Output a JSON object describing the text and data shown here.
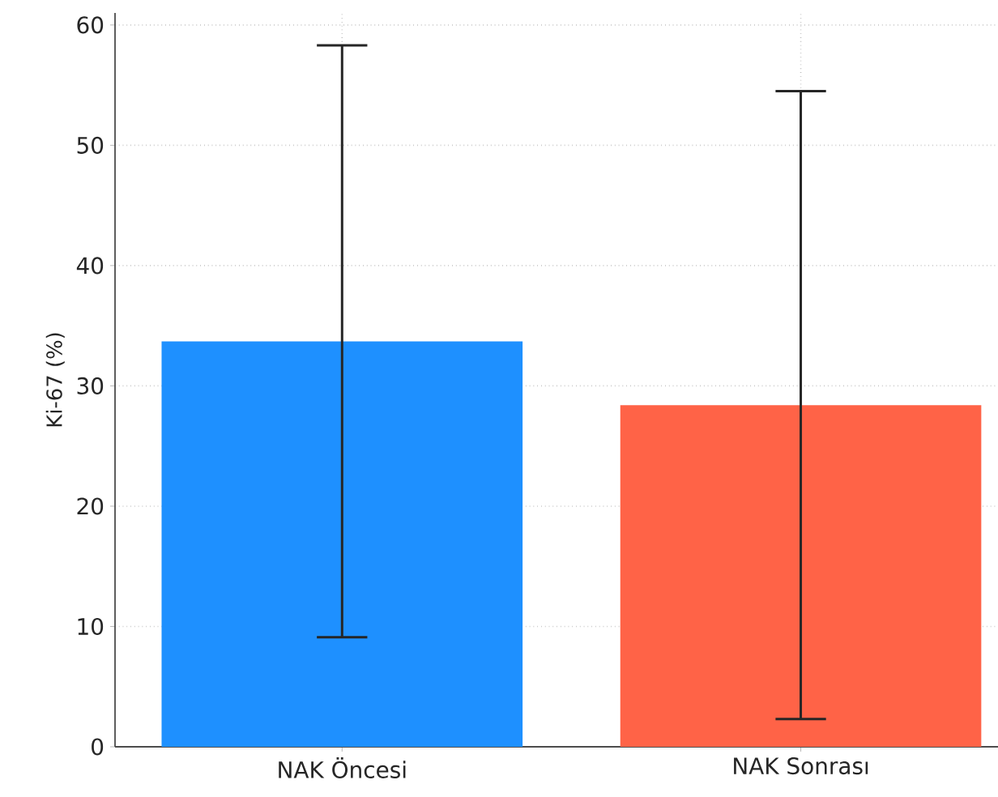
{
  "chart_data": {
    "type": "bar",
    "ylabel": "Ki-67 (%)",
    "categories": [
      "NAK Öncesi",
      "NAK Sonrası"
    ],
    "values": [
      33.7,
      28.4
    ],
    "colors": [
      "#1e90ff",
      "#ff6347"
    ],
    "errors": [
      24.6,
      26.1
    ],
    "ylim": [
      0,
      61
    ],
    "yticks": [
      0,
      10,
      20,
      30,
      40,
      50,
      60
    ],
    "grid": true
  }
}
